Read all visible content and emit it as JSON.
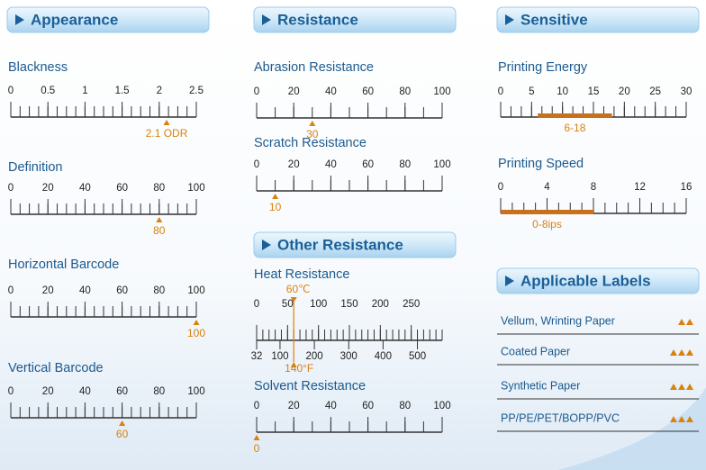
{
  "panels": [
    {
      "title": "Appearance",
      "gauges": [
        {
          "label": "Blackness",
          "lim": [
            0,
            2.5
          ],
          "ticks": [
            0,
            0.5,
            1,
            1.5,
            2,
            2.5
          ],
          "minor": 4,
          "marker": {
            "value": 2.1,
            "label": "2.1 ODR"
          }
        },
        {
          "label": "Definition",
          "lim": [
            0,
            100
          ],
          "ticks": [
            0,
            20,
            40,
            60,
            80,
            100
          ],
          "minor": 4,
          "marker": {
            "value": 80
          }
        },
        {
          "label": "Horizontal Barcode",
          "lim": [
            0,
            100
          ],
          "ticks": [
            0,
            20,
            40,
            60,
            80,
            100
          ],
          "minor": 4,
          "marker": {
            "value": 100
          }
        },
        {
          "label": "Vertical Barcode",
          "lim": [
            0,
            100
          ],
          "ticks": [
            0,
            20,
            40,
            60,
            80,
            100
          ],
          "minor": 4,
          "marker": {
            "value": 60
          }
        }
      ]
    },
    {
      "title": "Resistance",
      "gauges": [
        {
          "label": "Abrasion Resistance",
          "lim": [
            0,
            100
          ],
          "ticks": [
            0,
            20,
            40,
            60,
            80,
            100
          ],
          "minor": 2,
          "marker": {
            "value": 30
          }
        },
        {
          "label": "Scratch Resistance",
          "lim": [
            0,
            100
          ],
          "ticks": [
            0,
            20,
            40,
            60,
            80,
            100
          ],
          "minor": 2,
          "marker": {
            "value": 10
          }
        }
      ]
    },
    {
      "title": "Other Resistance",
      "gauges": [
        {
          "label": "Heat Resistance",
          "lim": [
            0,
            300
          ],
          "ticks": [
            0,
            50,
            100,
            150,
            200,
            250
          ],
          "minor": 5,
          "marker": {
            "value": 60,
            "label": "60℃"
          },
          "lim2": [
            32,
            572
          ],
          "ticks2": [
            32,
            100,
            200,
            300,
            400,
            500
          ],
          "marker2": {
            "value": 140,
            "label": "140°F"
          }
        },
        {
          "label": "Solvent Resistance",
          "lim": [
            0,
            100
          ],
          "ticks": [
            0,
            20,
            40,
            60,
            80,
            100
          ],
          "minor": 2,
          "marker": {
            "value": 0
          }
        }
      ]
    },
    {
      "title": "Sensitive",
      "gauges": [
        {
          "label": "Printing Energy",
          "lim": [
            0,
            30
          ],
          "ticks": [
            0,
            5,
            10,
            15,
            20,
            25,
            30
          ],
          "minor": 3,
          "range": {
            "values": [
              6,
              18
            ],
            "label": "6-18"
          }
        },
        {
          "label": "Printing Speed",
          "lim": [
            0,
            16
          ],
          "ticks": [
            0,
            4,
            8,
            12,
            16
          ],
          "minor": 4,
          "range": {
            "values": [
              0,
              8
            ],
            "label": "0-8ips"
          }
        }
      ]
    }
  ],
  "labels_panel": {
    "title": "Applicable Labels",
    "rows": [
      {
        "name": "Vellum, Wrinting Paper",
        "rating": 2
      },
      {
        "name": "Coated Paper",
        "rating": 3
      },
      {
        "name": "Synthetic Paper",
        "rating": 3
      },
      {
        "name": "PP/PE/PET/BOPP/PVC",
        "rating": 3
      }
    ]
  }
}
